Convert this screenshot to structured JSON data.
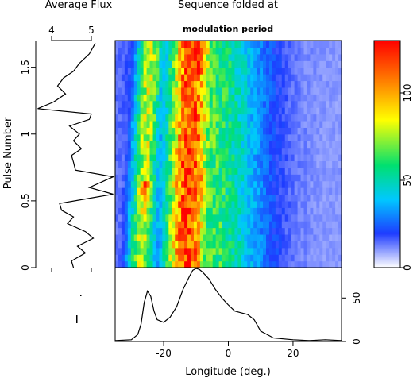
{
  "chart_data": [
    {
      "id": "flux-panel",
      "type": "line",
      "title": "Average Flux",
      "xlabel": "",
      "ylabel": "Pulse Number",
      "xlim": [
        3.6,
        5.6
      ],
      "ylim": [
        0,
        1.7
      ],
      "x_ticks": [
        4,
        5
      ],
      "y_ticks": [
        0,
        0.5,
        1,
        1.5
      ],
      "series": [
        {
          "x": [
            4.55,
            4.5,
            4.85,
            4.65,
            5.05,
            4.85,
            4.4,
            4.55,
            4.25,
            4.2,
            5.55,
            4.95,
            5.55,
            4.6,
            4.55,
            4.5,
            4.75,
            4.55,
            4.7,
            4.45,
            4.95,
            5.0,
            3.65,
            4.05,
            4.35,
            4.15,
            4.3,
            4.55,
            4.7,
            4.95,
            5.1
          ],
          "y": [
            0.0,
            0.05,
            0.11,
            0.16,
            0.22,
            0.27,
            0.33,
            0.38,
            0.43,
            0.48,
            0.55,
            0.6,
            0.68,
            0.73,
            0.79,
            0.84,
            0.89,
            0.95,
            1.0,
            1.06,
            1.11,
            1.15,
            1.19,
            1.24,
            1.3,
            1.36,
            1.42,
            1.47,
            1.53,
            1.6,
            1.68
          ]
        }
      ]
    },
    {
      "id": "folded-sequence",
      "type": "heatmap",
      "title": "Sequence folded at",
      "subtitle": "modulation period",
      "xlim": [
        -35,
        35
      ],
      "ylim": [
        0,
        1.7
      ],
      "colorbar": {
        "range": [
          0,
          130
        ],
        "ticks": [
          0,
          50,
          100
        ],
        "colors": [
          "#ffffff",
          "#1e3cff",
          "#00c8ff",
          "#00e070",
          "#ffff00",
          "#ff8000",
          "#ff0000"
        ]
      },
      "components": [
        {
          "name": "track-a",
          "center_top": -24,
          "center_bottom": -27,
          "width": 3.0,
          "peak": 70
        },
        {
          "name": "track-b",
          "center_top": -11,
          "center_bottom": -13,
          "width": 5.0,
          "peak": 110
        },
        {
          "name": "plateau",
          "center": -7,
          "width": 12,
          "peak": 55
        },
        {
          "name": "tail",
          "center": 2,
          "width": 7,
          "peak": 30
        }
      ],
      "hot_spots": [
        {
          "longitude": -12,
          "pulse": 1.45,
          "value": 120
        },
        {
          "longitude": -11,
          "pulse": 1.05,
          "value": 115
        },
        {
          "longitude": -10,
          "pulse": 0.68,
          "value": 125
        },
        {
          "longitude": -26,
          "pulse": 0.62,
          "value": 105
        },
        {
          "longitude": -26,
          "pulse": 0.55,
          "value": 100
        }
      ]
    },
    {
      "id": "integrated-profile",
      "type": "line",
      "xlabel": "Longitude (deg.)",
      "ylabel": "",
      "xlim": [
        -35,
        35
      ],
      "ylim": [
        0,
        85
      ],
      "x_ticks": [
        -20,
        0,
        20
      ],
      "y_ticks": [
        0,
        50
      ],
      "series": [
        {
          "x": [
            -35,
            -30,
            -28,
            -27,
            -26,
            -25,
            -24,
            -23,
            -22,
            -20,
            -18,
            -16,
            -14,
            -12,
            -11,
            -10,
            -9,
            -8,
            -6,
            -4,
            -2,
            0,
            2,
            4,
            6,
            8,
            10,
            14,
            20,
            25,
            30,
            35
          ],
          "y": [
            1,
            2,
            8,
            20,
            45,
            58,
            52,
            35,
            25,
            22,
            28,
            40,
            60,
            75,
            82,
            84,
            83,
            80,
            72,
            60,
            50,
            42,
            35,
            33,
            31,
            25,
            12,
            4,
            2,
            1,
            2,
            1
          ]
        }
      ]
    }
  ]
}
